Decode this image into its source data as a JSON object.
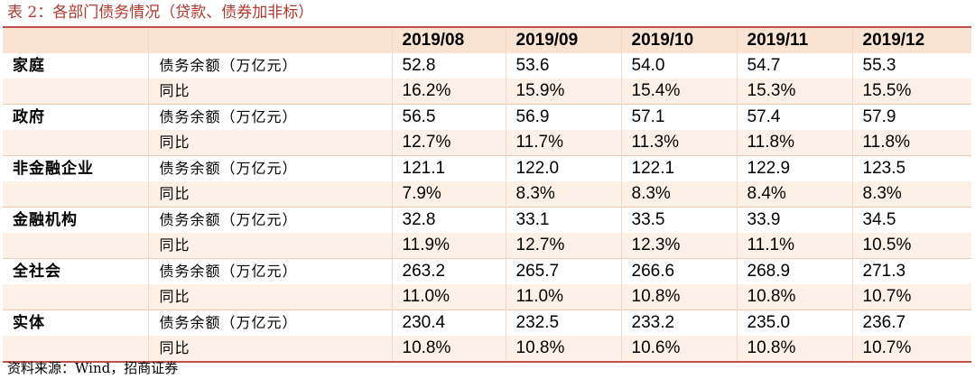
{
  "caption": "表 2：各部门债务情况（贷款、债券加非标）",
  "header": {
    "category": "",
    "metric": "",
    "periods": [
      "2019/08",
      "2019/09",
      "2019/10",
      "2019/11",
      "2019/12"
    ]
  },
  "rows": [
    {
      "category": "家庭",
      "metric": "债务余额（万亿元）",
      "values": [
        "52.8",
        "53.6",
        "54.0",
        "54.7",
        "55.3"
      ]
    },
    {
      "category": "",
      "metric": "同比",
      "values": [
        "16.2%",
        "15.9%",
        "15.4%",
        "15.3%",
        "15.5%"
      ]
    },
    {
      "category": "政府",
      "metric": "债务余额（万亿元）",
      "values": [
        "56.5",
        "56.9",
        "57.1",
        "57.4",
        "57.9"
      ]
    },
    {
      "category": "",
      "metric": "同比",
      "values": [
        "12.7%",
        "11.7%",
        "11.3%",
        "11.8%",
        "11.8%"
      ]
    },
    {
      "category": "非金融企业",
      "metric": "债务余额（万亿元）",
      "values": [
        "121.1",
        "122.0",
        "122.1",
        "122.9",
        "123.5"
      ]
    },
    {
      "category": "",
      "metric": "同比",
      "values": [
        "7.9%",
        "8.3%",
        "8.3%",
        "8.4%",
        "8.3%"
      ]
    },
    {
      "category": "金融机构",
      "metric": "债务余额（万亿元）",
      "values": [
        "32.8",
        "33.1",
        "33.5",
        "33.9",
        "34.5"
      ]
    },
    {
      "category": "",
      "metric": "同比",
      "values": [
        "11.9%",
        "12.7%",
        "12.3%",
        "11.1%",
        "10.5%"
      ]
    },
    {
      "category": "全社会",
      "metric": "债务余额（万亿元）",
      "values": [
        "263.2",
        "265.7",
        "266.6",
        "268.9",
        "271.3"
      ]
    },
    {
      "category": "",
      "metric": "同比",
      "values": [
        "11.0%",
        "11.0%",
        "10.8%",
        "10.8%",
        "10.7%"
      ]
    },
    {
      "category": "实体",
      "metric": "债务余额（万亿元）",
      "values": [
        "230.4",
        "232.5",
        "233.2",
        "235.0",
        "236.7"
      ]
    },
    {
      "category": "",
      "metric": "同比",
      "values": [
        "10.8%",
        "10.8%",
        "10.6%",
        "10.8%",
        "10.7%"
      ]
    }
  ],
  "source": "资料来源：Wind，招商证券"
}
